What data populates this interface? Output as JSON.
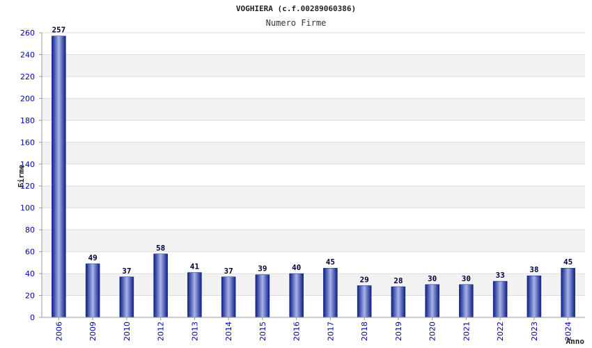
{
  "chart_data": {
    "type": "bar",
    "title": "VOGHIERA (c.f.00289060386)",
    "subtitle": "Numero Firme",
    "xlabel": "Anno",
    "ylabel": "Firme",
    "categories": [
      "2006",
      "2009",
      "2010",
      "2012",
      "2013",
      "2014",
      "2015",
      "2016",
      "2017",
      "2018",
      "2019",
      "2020",
      "2021",
      "2022",
      "2023",
      "2024"
    ],
    "values": [
      257,
      49,
      37,
      58,
      41,
      37,
      39,
      40,
      45,
      29,
      28,
      30,
      30,
      33,
      38,
      45
    ],
    "ylim": [
      0,
      260
    ],
    "yticks": [
      0,
      20,
      40,
      60,
      80,
      100,
      120,
      140,
      160,
      180,
      200,
      220,
      240,
      260
    ],
    "grid": true,
    "colors": {
      "bar_dark": "#0c1f87",
      "bar_light": "#a8b4e8",
      "tick_label": "#0000aa",
      "band": "#f2f2f2",
      "grid": "#dcdcdc",
      "value_label": "#000033"
    }
  }
}
